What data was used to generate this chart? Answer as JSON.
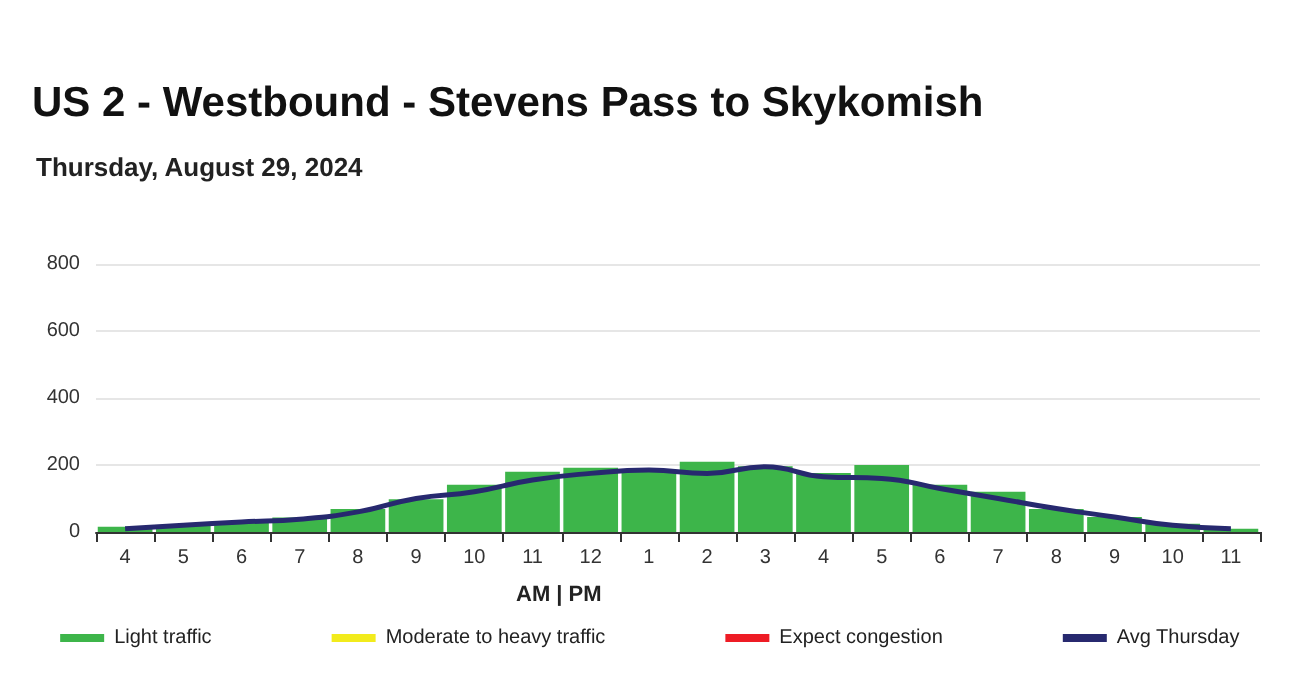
{
  "chart_data": {
    "type": "bar",
    "title": "US 2 - Westbound - Stevens Pass to Skykomish",
    "subtitle": "Thursday, August 29, 2024",
    "categories": [
      "4",
      "5",
      "6",
      "7",
      "8",
      "9",
      "10",
      "11",
      "12",
      "1",
      "2",
      "3",
      "4",
      "5",
      "6",
      "7",
      "8",
      "9",
      "10",
      "11"
    ],
    "series": [
      {
        "name": "Light traffic",
        "color": "#3db54a",
        "values": [
          16,
          20,
          30,
          43,
          69,
          98,
          141,
          180,
          192,
          180,
          210,
          196,
          176,
          200,
          141,
          120,
          69,
          45,
          25,
          10
        ]
      },
      {
        "name": "Moderate to heavy traffic",
        "color": "#f2eb1c",
        "values": [
          null,
          null,
          null,
          null,
          null,
          null,
          null,
          null,
          null,
          null,
          null,
          null,
          null,
          null,
          null,
          null,
          null,
          null,
          null,
          null
        ]
      },
      {
        "name": "Expect congestion",
        "color": "#ee1c25",
        "values": [
          null,
          null,
          null,
          null,
          null,
          null,
          null,
          null,
          null,
          null,
          null,
          null,
          null,
          null,
          null,
          null,
          null,
          null,
          null,
          null
        ]
      },
      {
        "name": "Avg Thursday",
        "type": "line",
        "color": "#27296f",
        "values": [
          10,
          20,
          30,
          38,
          60,
          100,
          120,
          155,
          175,
          185,
          175,
          195,
          165,
          160,
          130,
          100,
          70,
          45,
          20,
          10
        ]
      }
    ],
    "stacked": true,
    "ylim": [
      0,
      800
    ],
    "yticks": [
      0,
      200,
      400,
      600,
      800
    ],
    "grid": "y",
    "legend": "bottom",
    "marker": "none",
    "annotations": [
      "AM | PM"
    ]
  }
}
